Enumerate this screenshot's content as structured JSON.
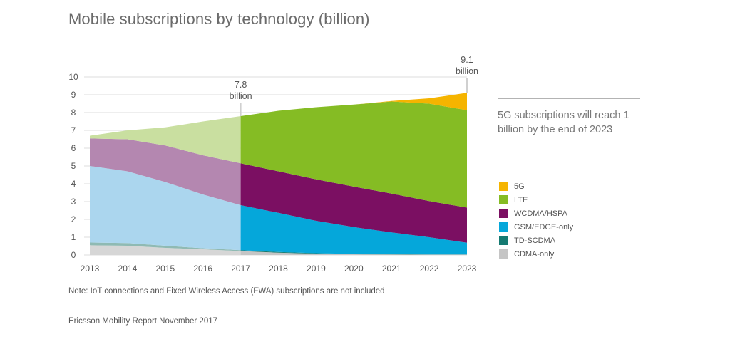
{
  "chart_data": {
    "type": "area",
    "title": "Mobile subscriptions by technology (billion)",
    "x": [
      2013,
      2014,
      2015,
      2016,
      2017,
      2018,
      2019,
      2020,
      2021,
      2022,
      2023
    ],
    "ylim": [
      0,
      10
    ],
    "yticks": [
      0,
      1,
      2,
      3,
      4,
      5,
      6,
      7,
      8,
      9,
      10
    ],
    "stacked": true,
    "historical_until": 2017,
    "series": [
      {
        "name": "CDMA-only",
        "color": "#c5c5c5",
        "color_historical": "#d6d6d6",
        "values": [
          0.55,
          0.52,
          0.4,
          0.32,
          0.22,
          0.13,
          0.07,
          0.04,
          0.03,
          0.02,
          0.02
        ]
      },
      {
        "name": "TD-SCDMA",
        "color": "#157a72",
        "color_historical": "#8fbab3",
        "values": [
          0.15,
          0.15,
          0.12,
          0.06,
          0.05,
          0.04,
          0.03,
          0.02,
          0.02,
          0.01,
          0.01
        ]
      },
      {
        "name": "GSM/EDGE-only",
        "color": "#05a7da",
        "color_historical": "#abd6ee",
        "values": [
          4.3,
          4.03,
          3.58,
          3.02,
          2.53,
          2.2,
          1.82,
          1.51,
          1.22,
          0.97,
          0.66
        ]
      },
      {
        "name": "WCDMA/HSPA",
        "color": "#7b0f62",
        "color_historical": "#b487b0",
        "values": [
          1.55,
          1.8,
          2.05,
          2.2,
          2.35,
          2.33,
          2.33,
          2.27,
          2.18,
          2.03,
          1.97
        ]
      },
      {
        "name": "LTE",
        "color": "#85bc24",
        "color_historical": "#c9dfa0",
        "values": [
          0.15,
          0.5,
          1.02,
          1.9,
          2.65,
          3.4,
          4.05,
          4.61,
          5.17,
          5.47,
          5.47
        ]
      },
      {
        "name": "5G",
        "color": "#f5b400",
        "color_historical": "#f5b400",
        "values": [
          0,
          0,
          0,
          0,
          0,
          0,
          0,
          0,
          0.03,
          0.3,
          0.98
        ]
      }
    ],
    "annotations": [
      {
        "x": 2017,
        "value": 7.8,
        "line1": "7.8",
        "line2": "billion"
      },
      {
        "x": 2023,
        "value": 9.1,
        "line1": "9.1",
        "line2": "billion"
      }
    ],
    "legend_order": [
      "5G",
      "LTE",
      "WCDMA/HSPA",
      "GSM/EDGE-only",
      "TD-SCDMA",
      "CDMA-only"
    ],
    "grid": true,
    "legend_position": "right"
  },
  "callout": "5G subscriptions will reach 1 billion by the end of 2023",
  "note": "Note: IoT connections and Fixed Wireless Access (FWA) subscriptions are not included",
  "source": "Ericsson Mobility Report November 2017"
}
